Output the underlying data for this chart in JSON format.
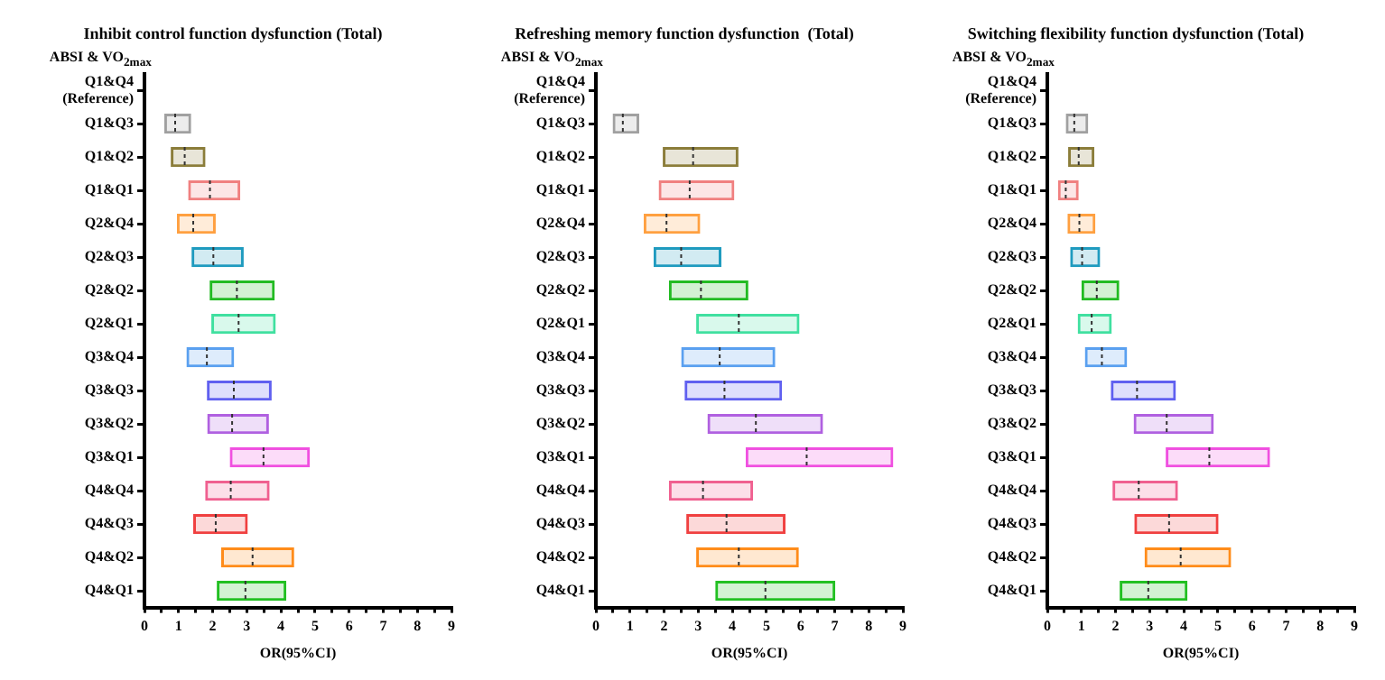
{
  "chart_data": [
    {
      "type": "box",
      "orientation": "horizontal",
      "title": "Inhibit control function dysfunction (Total)",
      "xlabel": "OR(95%CI)",
      "ylabel": "ABSI & VO$_{2max}$",
      "categories": [
        "Q1&Q4\n(Reference)",
        "Q1&Q3",
        "Q1&Q2",
        "Q1&Q1",
        "Q2&Q4",
        "Q2&Q3",
        "Q2&Q2",
        "Q2&Q1",
        "Q3&Q4",
        "Q3&Q3",
        "Q3&Q2",
        "Q3&Q1",
        "Q4&Q4",
        "Q4&Q3",
        "Q4&Q2",
        "Q4&Q1"
      ],
      "colors": [
        "#a0a0a0",
        "#a0a0a0",
        "#8b7d3a",
        "#f08080",
        "#ffa040",
        "#1f9bbf",
        "#22bb22",
        "#40e0a0",
        "#5aa0f0",
        "#6060f0",
        "#b060e0",
        "#f050e0",
        "#f06090",
        "#f04040",
        "#ff8c1a",
        "#22c022"
      ],
      "boxes": [
        null,
        {
          "low": 0.58,
          "q1": 0.58,
          "median": 0.9,
          "q3": 1.37,
          "high": 1.37
        },
        {
          "low": 0.77,
          "q1": 0.77,
          "median": 1.18,
          "q3": 1.79,
          "high": 1.79
        },
        {
          "low": 1.28,
          "q1": 1.28,
          "median": 1.92,
          "q3": 2.81,
          "high": 2.81
        },
        {
          "low": 0.95,
          "q1": 0.95,
          "median": 1.43,
          "q3": 2.09,
          "high": 2.09
        },
        {
          "low": 1.38,
          "q1": 1.38,
          "median": 2.02,
          "q3": 2.91,
          "high": 2.91
        },
        {
          "low": 1.91,
          "q1": 1.91,
          "median": 2.71,
          "q3": 3.82,
          "high": 3.82
        },
        {
          "low": 1.96,
          "q1": 1.96,
          "median": 2.76,
          "q3": 3.85,
          "high": 3.85
        },
        {
          "low": 1.23,
          "q1": 1.23,
          "median": 1.83,
          "q3": 2.63,
          "high": 2.63
        },
        {
          "low": 1.83,
          "q1": 1.83,
          "median": 2.62,
          "q3": 3.73,
          "high": 3.73
        },
        {
          "low": 1.84,
          "q1": 1.84,
          "median": 2.57,
          "q3": 3.65,
          "high": 3.65
        },
        {
          "low": 2.5,
          "q1": 2.5,
          "median": 3.49,
          "q3": 4.85,
          "high": 4.85
        },
        {
          "low": 1.78,
          "q1": 1.78,
          "median": 2.53,
          "q3": 3.67,
          "high": 3.67
        },
        {
          "low": 1.43,
          "q1": 1.43,
          "median": 2.09,
          "q3": 3.03,
          "high": 3.03
        },
        {
          "low": 2.25,
          "q1": 2.25,
          "median": 3.17,
          "q3": 4.39,
          "high": 4.39
        },
        {
          "low": 2.12,
          "q1": 2.12,
          "median": 2.96,
          "q3": 4.16,
          "high": 4.16
        }
      ],
      "xlim": [
        0,
        9
      ],
      "xticks": [
        0,
        {
          "value": 0.5,
          "label": null
        },
        1,
        {
          "value": 1.5,
          "label": null
        },
        2,
        {
          "value": 2.5,
          "label": null
        },
        3,
        {
          "value": 3.5,
          "label": null
        },
        4,
        {
          "value": 4.5,
          "label": null
        },
        5,
        {
          "value": 5.5,
          "label": null
        },
        6,
        {
          "value": 6.5,
          "label": null
        },
        7,
        {
          "value": 7.5,
          "label": null
        },
        8,
        {
          "value": 8.5,
          "label": null
        },
        9
      ]
    },
    {
      "type": "box",
      "orientation": "horizontal",
      "title": "Refreshing memory function dysfunction  (Total)",
      "xlabel": "OR(95%CI)",
      "ylabel": "ABSI & VO$_{2max}$",
      "categories": [
        "Q1&Q4\n(Reference)",
        "Q1&Q3",
        "Q1&Q2",
        "Q1&Q1",
        "Q2&Q4",
        "Q2&Q3",
        "Q2&Q2",
        "Q2&Q1",
        "Q3&Q4",
        "Q3&Q3",
        "Q3&Q2",
        "Q3&Q1",
        "Q4&Q4",
        "Q4&Q3",
        "Q4&Q2",
        "Q4&Q1"
      ],
      "colors": [
        "#a0a0a0",
        "#a0a0a0",
        "#8b7d3a",
        "#f08080",
        "#ffa040",
        "#1f9bbf",
        "#22bb22",
        "#40e0a0",
        "#5aa0f0",
        "#6060f0",
        "#b060e0",
        "#f050e0",
        "#f06090",
        "#f04040",
        "#ff8c1a",
        "#22c022"
      ],
      "boxes": [
        null,
        {
          "low": 0.49,
          "q1": 0.49,
          "median": 0.79,
          "q3": 1.27,
          "high": 1.27
        },
        {
          "low": 1.96,
          "q1": 1.96,
          "median": 2.85,
          "q3": 4.18,
          "high": 4.18
        },
        {
          "low": 1.84,
          "q1": 1.84,
          "median": 2.75,
          "q3": 4.06,
          "high": 4.06
        },
        {
          "low": 1.4,
          "q1": 1.4,
          "median": 2.07,
          "q3": 3.06,
          "high": 3.06
        },
        {
          "low": 1.69,
          "q1": 1.69,
          "median": 2.5,
          "q3": 3.68,
          "high": 3.68
        },
        {
          "low": 2.14,
          "q1": 2.14,
          "median": 3.08,
          "q3": 4.47,
          "high": 4.47
        },
        {
          "low": 2.94,
          "q1": 2.94,
          "median": 4.19,
          "q3": 5.97,
          "high": 5.97
        },
        {
          "low": 2.5,
          "q1": 2.5,
          "median": 3.63,
          "q3": 5.26,
          "high": 5.26
        },
        {
          "low": 2.6,
          "q1": 2.6,
          "median": 3.77,
          "q3": 5.46,
          "high": 5.46
        },
        {
          "low": 3.27,
          "q1": 3.27,
          "median": 4.69,
          "q3": 6.66,
          "high": 6.66
        },
        {
          "low": 4.39,
          "q1": 4.39,
          "median": 6.18,
          "q3": 8.72,
          "high": 8.72
        },
        {
          "low": 2.14,
          "q1": 2.14,
          "median": 3.14,
          "q3": 4.61,
          "high": 4.61
        },
        {
          "low": 2.65,
          "q1": 2.65,
          "median": 3.83,
          "q3": 5.56,
          "high": 5.56
        },
        {
          "low": 2.94,
          "q1": 2.94,
          "median": 4.19,
          "q3": 5.95,
          "high": 5.95
        },
        {
          "low": 3.5,
          "q1": 3.5,
          "median": 4.97,
          "q3": 7.02,
          "high": 7.02
        }
      ],
      "xlim": [
        0,
        9
      ],
      "xticks": [
        0,
        {
          "value": 0.5,
          "label": null
        },
        1,
        {
          "value": 1.5,
          "label": null
        },
        2,
        {
          "value": 2.5,
          "label": null
        },
        3,
        {
          "value": 3.5,
          "label": null
        },
        4,
        {
          "value": 4.5,
          "label": null
        },
        5,
        {
          "value": 5.5,
          "label": null
        },
        6,
        {
          "value": 6.5,
          "label": null
        },
        7,
        {
          "value": 7.5,
          "label": null
        },
        8,
        {
          "value": 8.5,
          "label": null
        },
        9
      ]
    },
    {
      "type": "box",
      "orientation": "horizontal",
      "title": "Switching flexibility function dysfunction (Total)",
      "xlabel": "OR(95%CI)",
      "ylabel": "ABSI & VO$_{2max}$",
      "categories": [
        "Q1&Q4\n(Reference)",
        "Q1&Q3",
        "Q1&Q2",
        "Q1&Q1",
        "Q2&Q4",
        "Q2&Q3",
        "Q2&Q2",
        "Q2&Q1",
        "Q3&Q4",
        "Q3&Q3",
        "Q3&Q2",
        "Q3&Q1",
        "Q4&Q4",
        "Q4&Q3",
        "Q4&Q2",
        "Q4&Q1"
      ],
      "colors": [
        "#a0a0a0",
        "#a0a0a0",
        "#8b7d3a",
        "#f08080",
        "#ffa040",
        "#1f9bbf",
        "#22bb22",
        "#40e0a0",
        "#5aa0f0",
        "#6060f0",
        "#b060e0",
        "#f050e0",
        "#f06090",
        "#f04040",
        "#ff8c1a",
        "#22c022"
      ],
      "boxes": [
        null,
        {
          "low": 0.54,
          "q1": 0.54,
          "median": 0.79,
          "q3": 1.2,
          "high": 1.2
        },
        {
          "low": 0.61,
          "q1": 0.61,
          "median": 0.92,
          "q3": 1.38,
          "high": 1.38
        },
        {
          "low": 0.31,
          "q1": 0.31,
          "median": 0.54,
          "q3": 0.92,
          "high": 0.92
        },
        {
          "low": 0.59,
          "q1": 0.59,
          "median": 0.94,
          "q3": 1.41,
          "high": 1.41
        },
        {
          "low": 0.67,
          "q1": 0.67,
          "median": 1.02,
          "q3": 1.55,
          "high": 1.55
        },
        {
          "low": 1.0,
          "q1": 1.0,
          "median": 1.45,
          "q3": 2.11,
          "high": 2.11
        },
        {
          "low": 0.89,
          "q1": 0.89,
          "median": 1.3,
          "q3": 1.89,
          "high": 1.89
        },
        {
          "low": 1.1,
          "q1": 1.1,
          "median": 1.6,
          "q3": 2.34,
          "high": 2.34
        },
        {
          "low": 1.86,
          "q1": 1.86,
          "median": 2.63,
          "q3": 3.77,
          "high": 3.77
        },
        {
          "low": 2.53,
          "q1": 2.53,
          "median": 3.5,
          "q3": 4.88,
          "high": 4.88
        },
        {
          "low": 3.47,
          "q1": 3.47,
          "median": 4.75,
          "q3": 6.53,
          "high": 6.53
        },
        {
          "low": 1.91,
          "q1": 1.91,
          "median": 2.68,
          "q3": 3.83,
          "high": 3.83
        },
        {
          "low": 2.55,
          "q1": 2.55,
          "median": 3.57,
          "q3": 5.02,
          "high": 5.02
        },
        {
          "low": 2.85,
          "q1": 2.85,
          "median": 3.91,
          "q3": 5.39,
          "high": 5.39
        },
        {
          "low": 2.12,
          "q1": 2.12,
          "median": 2.96,
          "q3": 4.11,
          "high": 4.11
        }
      ],
      "xlim": [
        0,
        9
      ],
      "xticks": [
        0,
        {
          "value": 0.5,
          "label": null
        },
        1,
        {
          "value": 1.5,
          "label": null
        },
        2,
        {
          "value": 2.5,
          "label": null
        },
        3,
        {
          "value": 3.5,
          "label": null
        },
        4,
        {
          "value": 4.5,
          "label": null
        },
        5,
        {
          "value": 5.5,
          "label": null
        },
        6,
        {
          "value": 6.5,
          "label": null
        },
        7,
        {
          "value": 7.5,
          "label": null
        },
        8,
        {
          "value": 8.5,
          "label": null
        },
        9
      ]
    }
  ]
}
